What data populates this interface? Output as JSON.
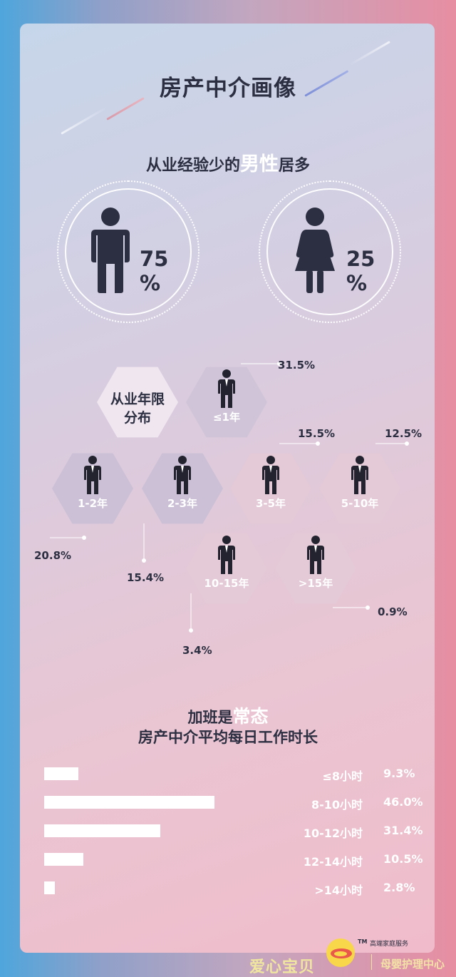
{
  "title": "房产中介画像",
  "gender": {
    "heading_pre": "从业经验少的",
    "heading_hl": "男性",
    "heading_post": "居多",
    "male": {
      "value": "75\n%",
      "icon": "male-person-icon"
    },
    "female": {
      "value": "25\n%",
      "icon": "female-person-icon"
    }
  },
  "experience": {
    "title": "从业年限\n分布",
    "items": [
      {
        "label": "≤1年",
        "value": "31.5%"
      },
      {
        "label": "1-2年",
        "value": "20.8%"
      },
      {
        "label": "2-3年",
        "value": "15.4%"
      },
      {
        "label": "3-5年",
        "value": "15.5%"
      },
      {
        "label": "5-10年",
        "value": "12.5%"
      },
      {
        "label": "10-15年",
        "value": "3.4%"
      },
      {
        "label": ">15年",
        "value": "0.9%"
      }
    ]
  },
  "hours": {
    "heading1_pre": "加班是",
    "heading1_hl": "常态",
    "heading2": "房产中介平均每日工作时长"
  },
  "chart_data": {
    "type": "bar",
    "title": "房产中介平均每日工作时长",
    "categories": [
      "≤8小时",
      "8-10小时",
      "10-12小时",
      "12-14小时",
      ">14小时"
    ],
    "values": [
      9.3,
      46.0,
      31.4,
      10.5,
      2.8
    ],
    "value_labels": [
      "9.3%",
      "46.0%",
      "31.4%",
      "10.5%",
      "2.8%"
    ],
    "orientation": "horizontal",
    "bar_color": "#ffffff"
  },
  "logo": {
    "tm": "TM",
    "tagline": "高端家庭服务",
    "name": "爱心宝贝",
    "sub": "母婴护理中心"
  },
  "colors": {
    "text_dark": "#2c2f41",
    "highlight": "#ffffff",
    "hex_dark": "#c9c0d4",
    "hex_light": "#efe6ef"
  }
}
